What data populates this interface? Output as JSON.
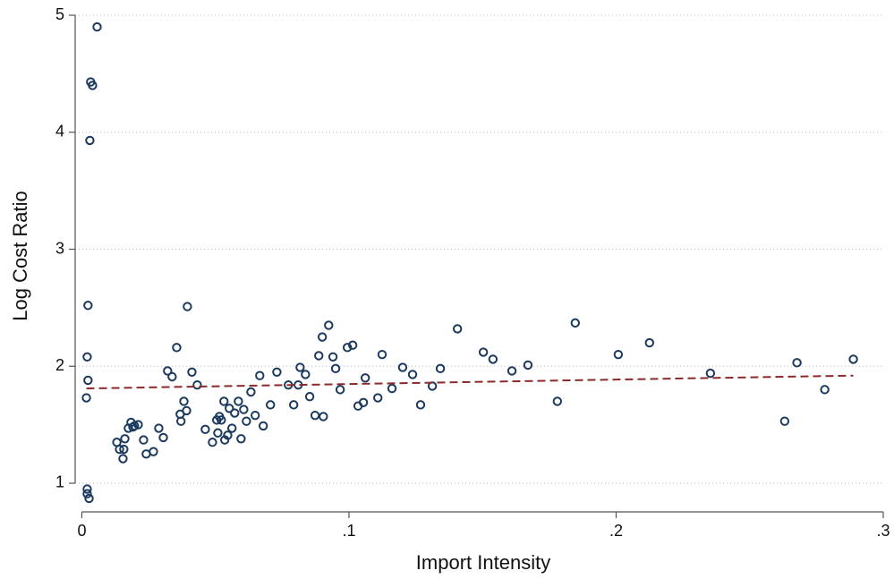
{
  "chart_data": {
    "type": "scatter",
    "x_label": "Import Intensity",
    "y_label": "Log Cost Ratio",
    "color": "#1c3a5e",
    "x": [
      0.0057,
      0.0033,
      0.004,
      0.003,
      0.0023,
      0.002,
      0.0023,
      0.0017,
      0.002,
      0.002,
      0.0027,
      0.0131,
      0.0141,
      0.0157,
      0.0154,
      0.0161,
      0.0174,
      0.0184,
      0.0191,
      0.0197,
      0.0211,
      0.0231,
      0.0241,
      0.0268,
      0.0288,
      0.0305,
      0.0321,
      0.0338,
      0.0355,
      0.0368,
      0.0371,
      0.0382,
      0.0392,
      0.0395,
      0.0412,
      0.0432,
      0.0462,
      0.0489,
      0.0505,
      0.0509,
      0.0515,
      0.0522,
      0.0532,
      0.0535,
      0.0546,
      0.0552,
      0.0562,
      0.0572,
      0.0586,
      0.0596,
      0.0606,
      0.0616,
      0.0633,
      0.0649,
      0.0666,
      0.0679,
      0.0706,
      0.073,
      0.0773,
      0.0793,
      0.081,
      0.0817,
      0.0837,
      0.0853,
      0.0873,
      0.0887,
      0.09,
      0.0904,
      0.0924,
      0.094,
      0.095,
      0.0967,
      0.0994,
      0.1014,
      0.1034,
      0.1054,
      0.1061,
      0.1108,
      0.1124,
      0.1161,
      0.1201,
      0.1238,
      0.1268,
      0.1312,
      0.1342,
      0.1406,
      0.1503,
      0.1539,
      0.161,
      0.167,
      0.178,
      0.1847,
      0.2008,
      0.2125,
      0.2353,
      0.2631,
      0.2677,
      0.2781,
      0.2888
    ],
    "values": [
      4.9,
      4.43,
      4.4,
      3.93,
      2.52,
      2.08,
      1.88,
      1.73,
      0.95,
      0.91,
      0.87,
      1.35,
      1.29,
      1.29,
      1.21,
      1.38,
      1.47,
      1.52,
      1.48,
      1.49,
      1.5,
      1.37,
      1.25,
      1.27,
      1.47,
      1.39,
      1.96,
      1.91,
      2.16,
      1.59,
      1.53,
      1.7,
      1.62,
      2.51,
      1.95,
      1.84,
      1.46,
      1.35,
      1.54,
      1.43,
      1.57,
      1.54,
      1.7,
      1.37,
      1.41,
      1.64,
      1.47,
      1.6,
      1.7,
      1.38,
      1.63,
      1.53,
      1.78,
      1.58,
      1.92,
      1.49,
      1.67,
      1.95,
      1.84,
      1.67,
      1.84,
      1.99,
      1.93,
      1.74,
      1.58,
      2.09,
      2.25,
      1.57,
      2.35,
      2.08,
      1.98,
      1.8,
      2.16,
      2.18,
      1.66,
      1.69,
      1.9,
      1.73,
      2.1,
      1.81,
      1.99,
      1.93,
      1.67,
      1.83,
      1.98,
      2.32,
      2.12,
      2.06,
      1.96,
      2.01,
      1.7,
      2.37,
      2.1,
      2.2,
      1.94,
      1.53,
      2.03,
      1.8,
      2.06
    ],
    "fit": {
      "color": "#8b2a2a",
      "x": [
        0.0017,
        0.2888
      ],
      "values": [
        1.81,
        1.92
      ]
    },
    "xlim": [
      -0.0025,
      0.3
    ],
    "ylim": [
      0.755,
      5.05
    ],
    "xticks": [
      0,
      {
        "value": 0.1,
        "label": ".1"
      },
      {
        "value": 0.2,
        "label": ".2"
      },
      {
        "value": 0.3,
        "label": ".3"
      }
    ],
    "yticks": [
      1,
      2,
      3,
      4,
      5
    ],
    "grid": true
  }
}
